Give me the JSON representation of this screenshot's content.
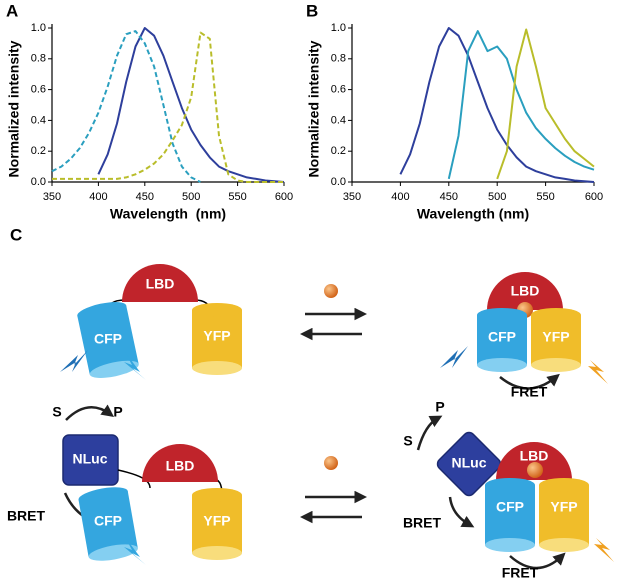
{
  "chart_data": [
    {
      "type": "line",
      "label": "A",
      "xlabel": "Wavelength  (nm)",
      "ylabel": "Normalized intensity",
      "x": [
        350,
        360,
        370,
        380,
        390,
        400,
        410,
        420,
        430,
        440,
        450,
        460,
        470,
        480,
        490,
        500,
        510,
        520,
        530,
        540,
        550,
        560,
        570,
        580,
        590,
        600
      ],
      "series": [
        {
          "color": "#2e3f9c",
          "linestyle": "solid",
          "values": [
            null,
            null,
            null,
            null,
            null,
            0.05,
            0.18,
            0.38,
            0.65,
            0.88,
            1.0,
            0.95,
            0.82,
            0.65,
            0.48,
            0.34,
            0.24,
            0.16,
            0.1,
            0.07,
            0.05,
            0.03,
            0.02,
            0.01,
            0.005,
            0.0
          ]
        },
        {
          "color": "#2a9fbf",
          "linestyle": "dashed",
          "values": [
            0.07,
            0.1,
            0.15,
            0.22,
            0.32,
            0.45,
            0.62,
            0.82,
            0.96,
            0.98,
            0.9,
            0.75,
            0.5,
            0.25,
            0.1,
            0.03,
            0.0,
            null,
            null,
            null,
            null,
            null,
            null,
            null,
            null,
            null
          ]
        },
        {
          "color": "#b9bd2a",
          "linestyle": "dashed",
          "values": [
            0.02,
            0.02,
            0.02,
            0.02,
            0.02,
            0.02,
            0.02,
            0.02,
            0.03,
            0.05,
            0.08,
            0.12,
            0.18,
            0.27,
            0.37,
            0.55,
            0.97,
            0.93,
            0.3,
            0.05,
            0.01,
            0.0,
            0.0,
            0.0,
            0.0,
            0.0
          ]
        }
      ],
      "xlim": [
        350,
        600
      ],
      "xticks": [
        350,
        400,
        450,
        500,
        550,
        600
      ],
      "ylim": [
        0,
        1
      ],
      "yticks": [
        {
          "value": 0,
          "label": "0.0"
        },
        0.2,
        0.4,
        0.6,
        0.8,
        {
          "value": 1,
          "label": "1.0"
        }
      ]
    },
    {
      "type": "line",
      "label": "B",
      "xlabel": "Wavelength (nm)",
      "ylabel": "Normalized intensity",
      "x": [
        350,
        360,
        370,
        380,
        390,
        400,
        410,
        420,
        430,
        440,
        450,
        460,
        470,
        480,
        490,
        500,
        510,
        520,
        530,
        540,
        550,
        560,
        570,
        580,
        590,
        600
      ],
      "series": [
        {
          "color": "#2e3f9c",
          "linestyle": "solid",
          "values": [
            null,
            null,
            null,
            null,
            null,
            0.05,
            0.18,
            0.38,
            0.65,
            0.88,
            1.0,
            0.95,
            0.82,
            0.65,
            0.48,
            0.34,
            0.24,
            0.16,
            0.1,
            0.07,
            0.05,
            0.03,
            0.02,
            0.01,
            0.005,
            0.0
          ]
        },
        {
          "color": "#2a9fbf",
          "linestyle": "solid",
          "values": [
            null,
            null,
            null,
            null,
            null,
            null,
            null,
            null,
            null,
            null,
            0.02,
            0.3,
            0.85,
            0.98,
            0.85,
            0.88,
            0.8,
            0.6,
            0.45,
            0.35,
            0.28,
            0.22,
            0.17,
            0.13,
            0.1,
            0.08
          ]
        },
        {
          "color": "#b9bd2a",
          "linestyle": "solid",
          "values": [
            null,
            null,
            null,
            null,
            null,
            null,
            null,
            null,
            null,
            null,
            null,
            null,
            null,
            null,
            null,
            0.02,
            0.2,
            0.75,
            0.99,
            0.75,
            0.48,
            0.38,
            0.28,
            0.2,
            0.15,
            0.1
          ]
        }
      ],
      "xlim": [
        350,
        600
      ],
      "xticks": [
        350,
        400,
        450,
        500,
        550,
        600
      ],
      "ylim": [
        0,
        1
      ],
      "yticks": [
        {
          "value": 0,
          "label": "0.0"
        },
        0.2,
        0.4,
        0.6,
        0.8,
        {
          "value": 1,
          "label": "1.0"
        }
      ]
    }
  ],
  "diagram": {
    "label": "C",
    "scheme1": {
      "left": {
        "lbd": "LBD",
        "cfp": "CFP",
        "yfp": "YFP"
      },
      "right": {
        "lbd": "LBD",
        "cfp": "CFP",
        "yfp": "YFP",
        "fret": "FRET"
      }
    },
    "scheme2": {
      "left": {
        "s": "S",
        "p": "P",
        "nluc": "NLuc",
        "bret": "BRET",
        "lbd": "LBD",
        "cfp": "CFP",
        "yfp": "YFP"
      },
      "right": {
        "p": "P",
        "s": "S",
        "nluc": "NLuc",
        "lbd": "LBD",
        "bret": "BRET",
        "cfp": "CFP",
        "yfp": "YFP",
        "fret": "FRET"
      }
    }
  }
}
